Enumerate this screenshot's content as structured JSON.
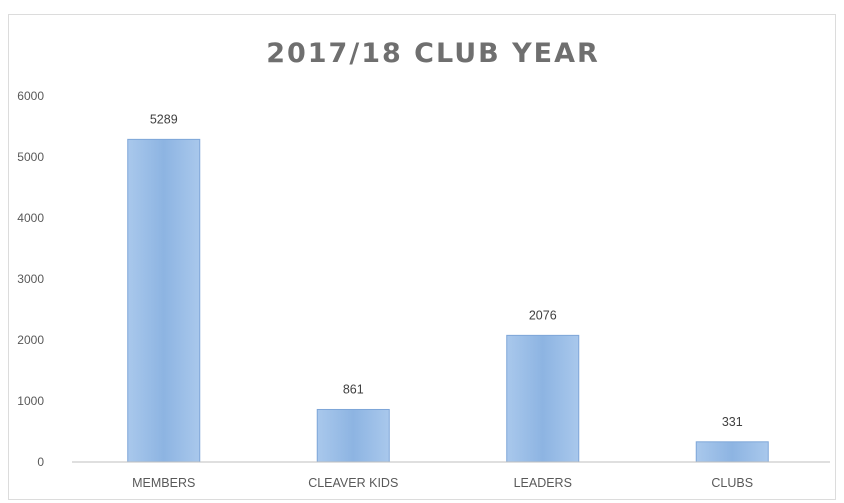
{
  "chart_data": {
    "type": "bar",
    "title": "2017/18 CLUB YEAR",
    "categories": [
      "MEMBERS",
      "CLEAVER KIDS",
      "LEADERS",
      "CLUBS"
    ],
    "values": [
      5289,
      861,
      2076,
      331
    ],
    "data_labels": [
      "5289",
      "861",
      "2076",
      "331"
    ],
    "y_ticks": [
      "0",
      "1000",
      "2000",
      "3000",
      "4000",
      "5000",
      "6000"
    ],
    "ylim": [
      0,
      6000
    ],
    "xlabel": "",
    "ylabel": "",
    "grid": false,
    "legend": "none",
    "bar_color": "#8db4e2"
  }
}
